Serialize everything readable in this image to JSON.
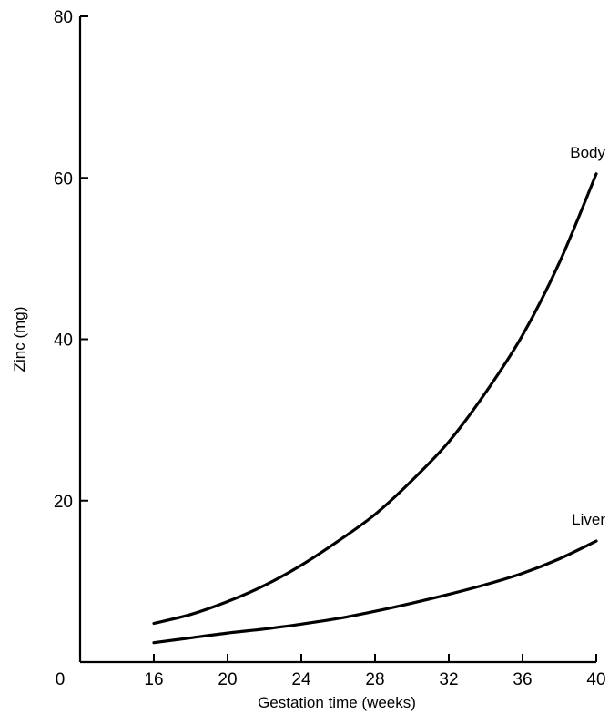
{
  "chart_data": {
    "type": "line",
    "title": "",
    "xlabel": "Gestation time (weeks)",
    "ylabel": "Zinc (mg)",
    "xlim": [
      12,
      40
    ],
    "ylim": [
      0,
      80
    ],
    "x_origin_label": "0",
    "x_ticks": [
      16,
      20,
      24,
      28,
      32,
      36,
      40
    ],
    "y_ticks": [
      20,
      40,
      60,
      80
    ],
    "grid": false,
    "legend": "none",
    "series": [
      {
        "name": "Body",
        "x": [
          16,
          18,
          20,
          22,
          24,
          26,
          28,
          30,
          32,
          34,
          36,
          38,
          40
        ],
        "y": [
          4.8,
          5.9,
          7.5,
          9.5,
          12,
          15,
          18.3,
          22.5,
          27.3,
          33.4,
          40.5,
          49.5,
          60.5
        ]
      },
      {
        "name": "Liver",
        "x": [
          16,
          18,
          20,
          22,
          24,
          26,
          28,
          30,
          32,
          34,
          36,
          38,
          40
        ],
        "y": [
          2.4,
          3,
          3.6,
          4.1,
          4.7,
          5.4,
          6.3,
          7.3,
          8.4,
          9.6,
          11,
          12.8,
          15
        ]
      }
    ]
  }
}
